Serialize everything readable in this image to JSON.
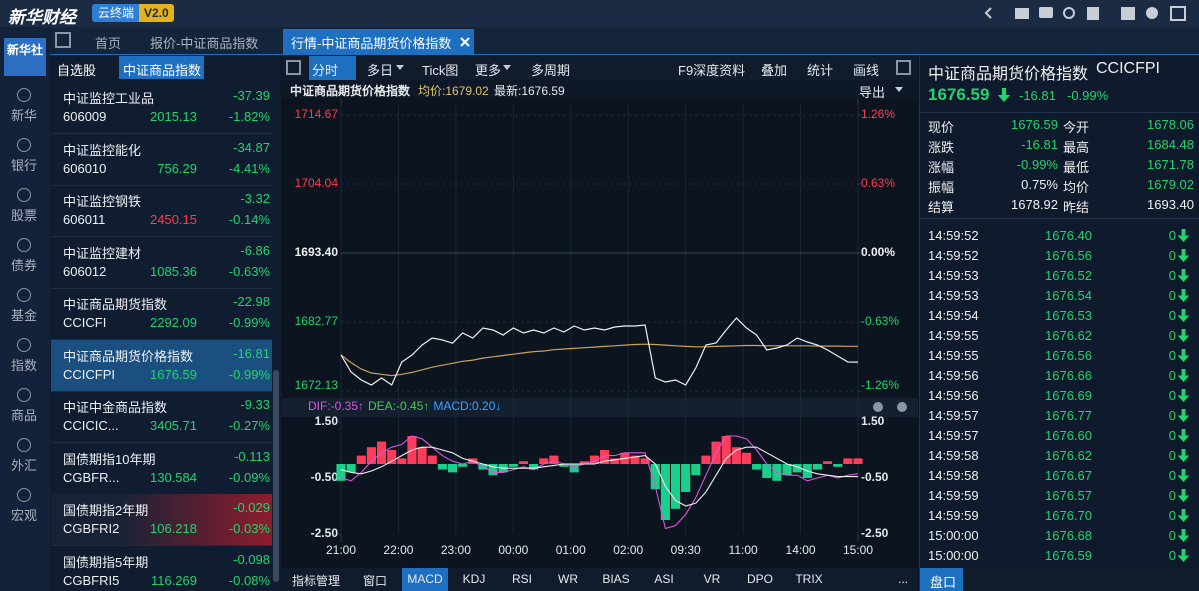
{
  "header": {
    "brand": "新华财经",
    "app": "云终端",
    "version": "V2.0",
    "logo": "新华社"
  },
  "tabs": [
    "首页",
    "报价-中证商品指数",
    "行情-中证商品期货价格指数"
  ],
  "nav": [
    "新华",
    "银行",
    "股票",
    "债券",
    "基金",
    "指数",
    "商品",
    "外汇",
    "宏观"
  ],
  "watchlist": {
    "tabs": [
      "自选股",
      "中证商品指数"
    ],
    "rows": [
      {
        "name": "中证监控工业品",
        "change": "-37.39",
        "code": "606009",
        "price": "2015.13",
        "pct": "-1.82%"
      },
      {
        "name": "中证监控能化",
        "change": "-34.87",
        "code": "606010",
        "price": "756.29",
        "pct": "-4.41%"
      },
      {
        "name": "中证监控钢铁",
        "change": "-3.32",
        "code": "606011",
        "price": "2450.15",
        "pct": "-0.14%",
        "price_color": "#ff3d4f"
      },
      {
        "name": "中证监控建材",
        "change": "-6.86",
        "code": "606012",
        "price": "1085.36",
        "pct": "-0.63%"
      },
      {
        "name": "中证商品期货指数",
        "change": "-22.98",
        "code": "CCICFI",
        "price": "2292.09",
        "pct": "-0.99%"
      },
      {
        "name": "中证商品期货价格指数",
        "change": "-16.81",
        "code": "CCICFPI",
        "price": "1676.59",
        "pct": "-0.99%",
        "highlight": "selected"
      },
      {
        "name": "中证中金商品指数",
        "change": "-9.33",
        "code": "CCICIC...",
        "price": "3405.71",
        "pct": "-0.27%"
      },
      {
        "name": "国债期指10年期",
        "change": "-0.113",
        "code": "CGBFR...",
        "price": "130.584",
        "pct": "-0.09%"
      },
      {
        "name": "国债期指2年期",
        "change": "-0.029",
        "code": "CGBFRI2",
        "price": "106.218",
        "pct": "-0.03%",
        "highlight": "alert"
      },
      {
        "name": "国债期指5年期",
        "change": "-0.098",
        "code": "CGBFRI5",
        "price": "116.269",
        "pct": "-0.08%"
      }
    ]
  },
  "toolbar": {
    "left": [
      "分时",
      "多日",
      "Tick图",
      "更多",
      "多周期"
    ],
    "right": [
      "F9深度资料",
      "叠加",
      "统计",
      "画线"
    ]
  },
  "info": {
    "name": "中证商品期货价格指数",
    "avg": "均价:1679.02",
    "last": "最新:1676.59",
    "export": "导出"
  },
  "chart_data": [
    {
      "type": "line",
      "xtick_labels": [
        "21:00",
        "22:00",
        "23:00",
        "00:00",
        "01:00",
        "02:00",
        "09:30",
        "11:00",
        "14:00",
        "15:00"
      ],
      "ylim": [
        1672.13,
        1714.67
      ],
      "yticks": [
        1714.67,
        1704.04,
        {
          "value": 1693.4,
          "label": "1693.40"
        },
        1682.77,
        1672.13
      ],
      "y2lim": [
        -1.26,
        1.26
      ],
      "y2ticks": [
        {
          "value": 1.26,
          "label": "1.26%"
        },
        {
          "value": 0.63,
          "label": "0.63%"
        },
        {
          "value": 0,
          "label": "0.00%"
        },
        {
          "value": -0.63,
          "label": "-0.63%"
        },
        {
          "value": -1.26,
          "label": "-1.26%"
        }
      ],
      "grid": true,
      "series": [
        {
          "color": "#f2f2f2",
          "values": [
            1677.68,
            1675.06,
            1673.83,
            1673.06,
            1674.14,
            1673.06,
            1676.6,
            1677.68,
            1679.22,
            1680.3,
            1680.0,
            1679.5,
            1681.07,
            1680.3,
            1681.84,
            1681.53,
            1680.76,
            1681.84,
            1681.07,
            1681.53,
            1681.07,
            1681.84,
            1681.23,
            1682.15,
            1681.53,
            1681.84,
            1681.53,
            1682.0,
            1682.15,
            1682.15,
            1682.3,
            1674.14,
            1673.52,
            1673.83,
            1673.06,
            1675.68,
            1679.22,
            1679.53,
            1681.53,
            1683.38,
            1681.84,
            1680.76,
            1678.45,
            1678.76,
            1679.22,
            1680.3,
            1679.68,
            1679.22,
            1678.45,
            1677.53,
            1676.6,
            1676.59
          ]
        },
        {
          "color": "#c9a457",
          "values": [
            1677.68,
            1676.5,
            1675.5,
            1674.9,
            1674.7,
            1674.5,
            1674.7,
            1675.0,
            1675.4,
            1675.8,
            1676.1,
            1676.4,
            1676.7,
            1676.9,
            1677.2,
            1677.4,
            1677.6,
            1677.8,
            1678.0,
            1678.2,
            1678.3,
            1678.5,
            1678.6,
            1678.7,
            1678.8,
            1678.9,
            1679.0,
            1679.1,
            1679.2,
            1679.3,
            1679.35,
            1679.3,
            1679.2,
            1679.1,
            1679.0,
            1678.95,
            1678.95,
            1679.0,
            1679.05,
            1679.1,
            1679.15,
            1679.15,
            1679.1,
            1679.1,
            1679.1,
            1679.1,
            1679.1,
            1679.05,
            1679.05,
            1679.05,
            1679.02,
            1679.02
          ]
        }
      ]
    },
    {
      "type": "bar",
      "legend": [
        {
          "text": "DIF:-0.35↑",
          "color": "#d957d9"
        },
        {
          "text": "DEA:-0.45↑",
          "color": "#4cc94c"
        },
        {
          "text": "MACD:0.20↓",
          "color": "#3aa0ff"
        }
      ],
      "ylim": [
        -2.5,
        1.5
      ],
      "yticks": [
        {
          "value": 1.5,
          "label": "1.50"
        },
        {
          "value": -0.5,
          "label": "-0.50"
        },
        {
          "value": -2.5,
          "label": "-2.50"
        }
      ],
      "up_color": "#ff3d5a",
      "down_color": "#19cf8a",
      "values": [
        -0.6,
        -0.3,
        0.3,
        0.6,
        0.8,
        0.5,
        0.2,
        1.0,
        0.6,
        0.3,
        -0.2,
        -0.3,
        -0.1,
        0.2,
        -0.2,
        -0.4,
        -0.3,
        -0.1,
        0.1,
        -0.2,
        0.2,
        0.3,
        -0.1,
        -0.3,
        0.1,
        0.3,
        0.5,
        0.2,
        0.4,
        0.3,
        0.2,
        -0.9,
        -2.0,
        -1.6,
        -1.0,
        -0.4,
        0.3,
        0.8,
        1.0,
        0.6,
        0.4,
        -0.2,
        -0.5,
        -0.6,
        -0.4,
        -0.3,
        -0.5,
        -0.2,
        0.1,
        -0.1,
        0.2,
        0.2
      ],
      "series": [
        {
          "color": "#d957d9",
          "values": [
            -0.5,
            -0.6,
            -0.3,
            0.1,
            0.4,
            0.6,
            0.7,
            1.0,
            0.9,
            0.6,
            0.3,
            0.1,
            0.0,
            0.1,
            -0.1,
            -0.3,
            -0.3,
            -0.2,
            -0.1,
            -0.2,
            0.0,
            0.1,
            0.0,
            -0.1,
            0.0,
            0.1,
            0.3,
            0.3,
            0.4,
            0.4,
            0.4,
            -0.8,
            -2.3,
            -2.2,
            -1.8,
            -1.2,
            -0.4,
            0.4,
            1.0,
            1.0,
            0.9,
            0.5,
            0.0,
            -0.3,
            -0.4,
            -0.4,
            -0.6,
            -0.5,
            -0.4,
            -0.5,
            -0.4,
            -0.35
          ]
        },
        {
          "color": "#eeeeee",
          "values": [
            -0.2,
            -0.3,
            -0.35,
            -0.25,
            -0.1,
            0.1,
            0.3,
            0.5,
            0.6,
            0.6,
            0.5,
            0.4,
            0.2,
            0.1,
            0.0,
            -0.1,
            -0.15,
            -0.15,
            -0.15,
            -0.15,
            -0.1,
            -0.05,
            0.0,
            0.0,
            0.0,
            0.0,
            0.1,
            0.15,
            0.2,
            0.25,
            0.3,
            0.0,
            -0.8,
            -1.3,
            -1.5,
            -1.4,
            -1.0,
            -0.4,
            0.2,
            0.5,
            0.6,
            0.6,
            0.4,
            0.2,
            0.0,
            -0.1,
            -0.25,
            -0.35,
            -0.4,
            -0.45,
            -0.45,
            -0.45
          ]
        }
      ]
    }
  ],
  "indicator_tabs": [
    "指标管理",
    "窗口",
    "MACD",
    "KDJ",
    "RSI",
    "WR",
    "BIAS",
    "ASI",
    "VR",
    "DPO",
    "TRIX",
    "..."
  ],
  "quote": {
    "name": "中证商品期货价格指数",
    "code": "CCICFPI",
    "price": "1676.59",
    "change": "-16.81",
    "pct": "-0.99%",
    "stats": [
      {
        "label": "现价",
        "value": "1676.59",
        "color": "#22d36e"
      },
      {
        "label": "今开",
        "value": "1678.06",
        "color": "#22d36e"
      },
      {
        "label": "涨跌",
        "value": "-16.81",
        "color": "#22d36e"
      },
      {
        "label": "最高",
        "value": "1684.48",
        "color": "#22d36e"
      },
      {
        "label": "涨幅",
        "value": "-0.99%",
        "color": "#22d36e"
      },
      {
        "label": "最低",
        "value": "1671.78",
        "color": "#22d36e"
      },
      {
        "label": "振幅",
        "value": "0.75%",
        "color": "#f0f0f0"
      },
      {
        "label": "均价",
        "value": "1679.02",
        "color": "#22d36e"
      },
      {
        "label": "结算",
        "value": "1678.92",
        "color": "#f0f0f0"
      },
      {
        "label": "昨结",
        "value": "1693.40",
        "color": "#f0f0f0"
      }
    ],
    "ticks": [
      [
        "14:59:52",
        "1676.40",
        "0"
      ],
      [
        "14:59:52",
        "1676.56",
        "0"
      ],
      [
        "14:59:53",
        "1676.52",
        "0"
      ],
      [
        "14:59:53",
        "1676.54",
        "0"
      ],
      [
        "14:59:54",
        "1676.53",
        "0"
      ],
      [
        "14:59:55",
        "1676.62",
        "0"
      ],
      [
        "14:59:55",
        "1676.56",
        "0"
      ],
      [
        "14:59:56",
        "1676.66",
        "0"
      ],
      [
        "14:59:56",
        "1676.69",
        "0"
      ],
      [
        "14:59:57",
        "1676.77",
        "0"
      ],
      [
        "14:59:57",
        "1676.60",
        "0"
      ],
      [
        "14:59:58",
        "1676.62",
        "0"
      ],
      [
        "14:59:58",
        "1676.67",
        "0"
      ],
      [
        "14:59:59",
        "1676.57",
        "0"
      ],
      [
        "14:59:59",
        "1676.70",
        "0"
      ],
      [
        "15:00:00",
        "1676.68",
        "0"
      ],
      [
        "15:00:00",
        "1676.59",
        "0"
      ]
    ],
    "tab": "盘口"
  }
}
